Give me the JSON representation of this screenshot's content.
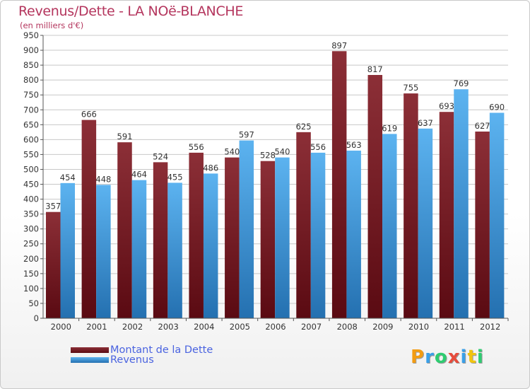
{
  "title": "Revenus/Dette - LA NOë-BLANCHE",
  "subtitle": "(en milliers d'€)",
  "colors": {
    "title": "#b4355d",
    "debt_top": "#8c2f37",
    "debt_bottom": "#5a0a12",
    "revenue_top": "#5cb3f0",
    "revenue_bottom": "#2470b0",
    "grid": "#c8c8c8",
    "legend_text": "#4a63e0"
  },
  "legend": {
    "debt_label": "Montant de la Dette",
    "revenue_label": "Revenus"
  },
  "logo": {
    "letters": [
      "P",
      "r",
      "o",
      "x",
      "i",
      "t",
      "i"
    ],
    "colors": [
      "#f39c12",
      "#3aa0e8",
      "#2ecc71",
      "#e74c3c",
      "#3aa0e8",
      "#f1c40f",
      "#2ecc71"
    ]
  },
  "chart_data": {
    "type": "bar",
    "title": "Revenus/Dette - LA NOë-BLANCHE",
    "ylabel": "(en milliers d'€)",
    "xlabel": "",
    "categories": [
      "2000",
      "2001",
      "2002",
      "2003",
      "2004",
      "2005",
      "2006",
      "2007",
      "2008",
      "2009",
      "2010",
      "2011",
      "2012"
    ],
    "series": [
      {
        "name": "Montant de la Dette",
        "values": [
          357,
          666,
          591,
          524,
          556,
          540,
          528,
          625,
          897,
          817,
          755,
          693,
          627
        ]
      },
      {
        "name": "Revenus",
        "values": [
          454,
          448,
          464,
          455,
          486,
          597,
          540,
          556,
          563,
          619,
          637,
          769,
          690
        ]
      }
    ],
    "ylim": [
      0,
      950
    ],
    "yticks": [
      0,
      50,
      100,
      150,
      200,
      250,
      300,
      350,
      400,
      450,
      500,
      550,
      600,
      650,
      700,
      750,
      800,
      850,
      900,
      950
    ],
    "grid": true,
    "legend_position": "bottom-left"
  }
}
